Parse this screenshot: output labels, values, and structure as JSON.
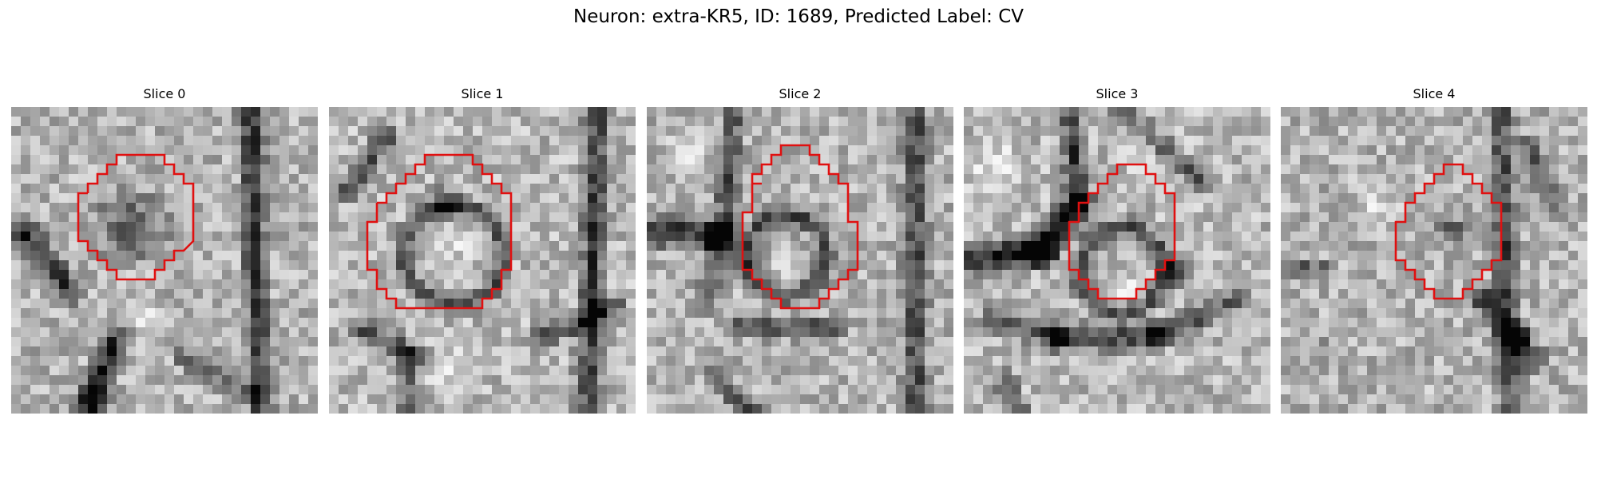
{
  "figure": {
    "title": "Neuron: extra-KR5, ID: 1689, Predicted Label: CV"
  },
  "colors": {
    "outline": "#e01010",
    "background": "#ffffff"
  },
  "panels": [
    {
      "title": "Slice 0"
    },
    {
      "title": "Slice 1"
    },
    {
      "title": "Slice 2"
    },
    {
      "title": "Slice 3"
    },
    {
      "title": "Slice 4"
    }
  ]
}
